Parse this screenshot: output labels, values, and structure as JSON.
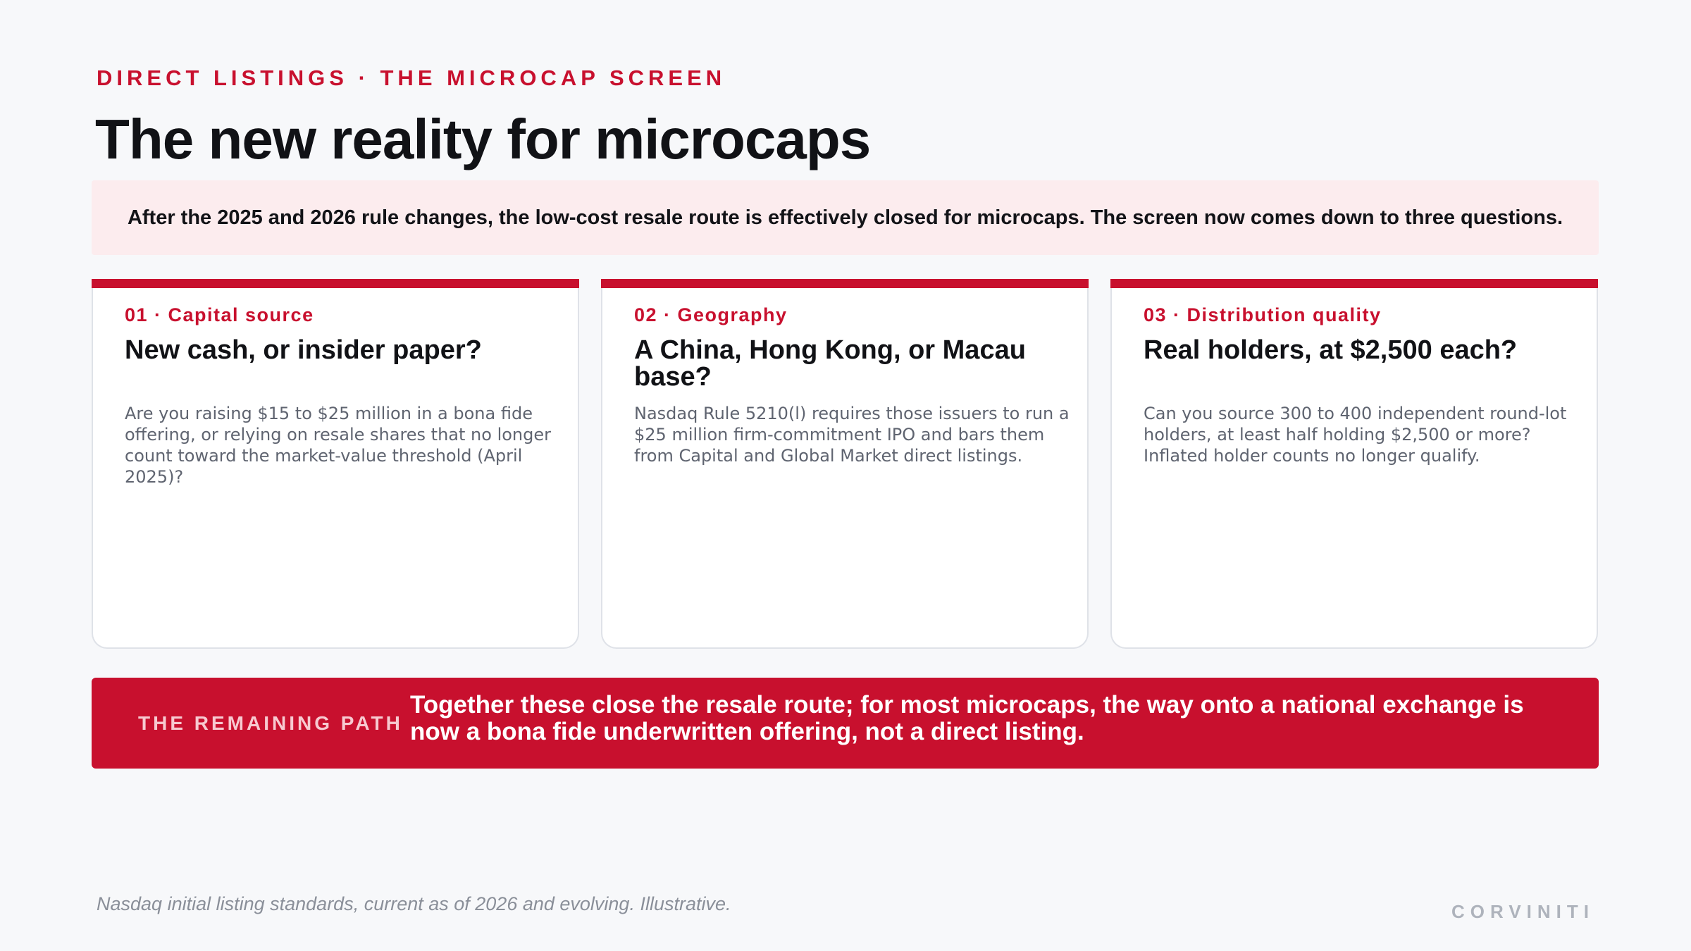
{
  "header": {
    "kicker": "DIRECT LISTINGS · THE MICROCAP SCREEN",
    "title": "The new reality for microcaps"
  },
  "intro": "After the 2025 and 2026 rule changes, the low-cost resale route is effectively closed for microcaps. The screen now comes down to three questions.",
  "cards": [
    {
      "label": "01 · Capital source",
      "heading": "New cash, or insider paper?",
      "body": "Are you raising $15 to $25 million in a bona fide offering, or relying on resale shares that no longer count toward the market-value threshold (April 2025)?"
    },
    {
      "label": "02 · Geography",
      "heading": "A China, Hong Kong, or Macau base?",
      "body": "Nasdaq Rule 5210(l) requires those issuers to run a $25 million firm-commitment IPO and bars them from Capital and Global Market direct listings."
    },
    {
      "label": "03 · Distribution quality",
      "heading": "Real holders, at $2,500 each?",
      "body": "Can you source 300 to 400 independent round-lot holders, at least half holding $2,500 or more? Inflated holder counts no longer qualify."
    }
  ],
  "remaining_path": {
    "label": "THE REMAINING PATH",
    "text": "Together these close the resale route; for most microcaps, the way onto a national exchange is now a bona fide underwritten offering, not a direct listing."
  },
  "footer": {
    "note": "Nasdaq initial listing standards, current as of 2026 and evolving. Illustrative.",
    "brand": "CORVINITI"
  },
  "colors": {
    "accent": "#c8102e",
    "intro_background": "#fcecee",
    "page_background": "#f7f8fa"
  }
}
